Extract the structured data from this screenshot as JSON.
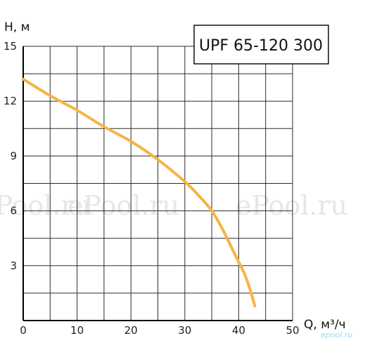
{
  "chart_data": {
    "type": "line",
    "title": "UPF 65-120 300",
    "xlabel": "Q, м³/ч",
    "ylabel": "H, м",
    "xlim": [
      0,
      50
    ],
    "ylim": [
      0,
      15
    ],
    "x_ticks": [
      0,
      10,
      20,
      30,
      40,
      50
    ],
    "y_ticks": [
      3,
      6,
      9,
      12,
      15
    ],
    "grid": true,
    "line_color": "#f5b445",
    "series": [
      {
        "x": [
          0,
          5,
          10,
          15,
          20,
          25,
          30,
          33,
          35,
          37,
          39,
          41,
          42,
          43
        ],
        "y": [
          13.2,
          12.3,
          11.5,
          10.6,
          9.8,
          8.8,
          7.6,
          6.7,
          6.0,
          5.0,
          3.8,
          2.6,
          1.8,
          0.8
        ]
      }
    ]
  },
  "watermark": {
    "text": "ePool.ru",
    "logo": "epool.ru",
    "color": "#e6e6e6"
  }
}
